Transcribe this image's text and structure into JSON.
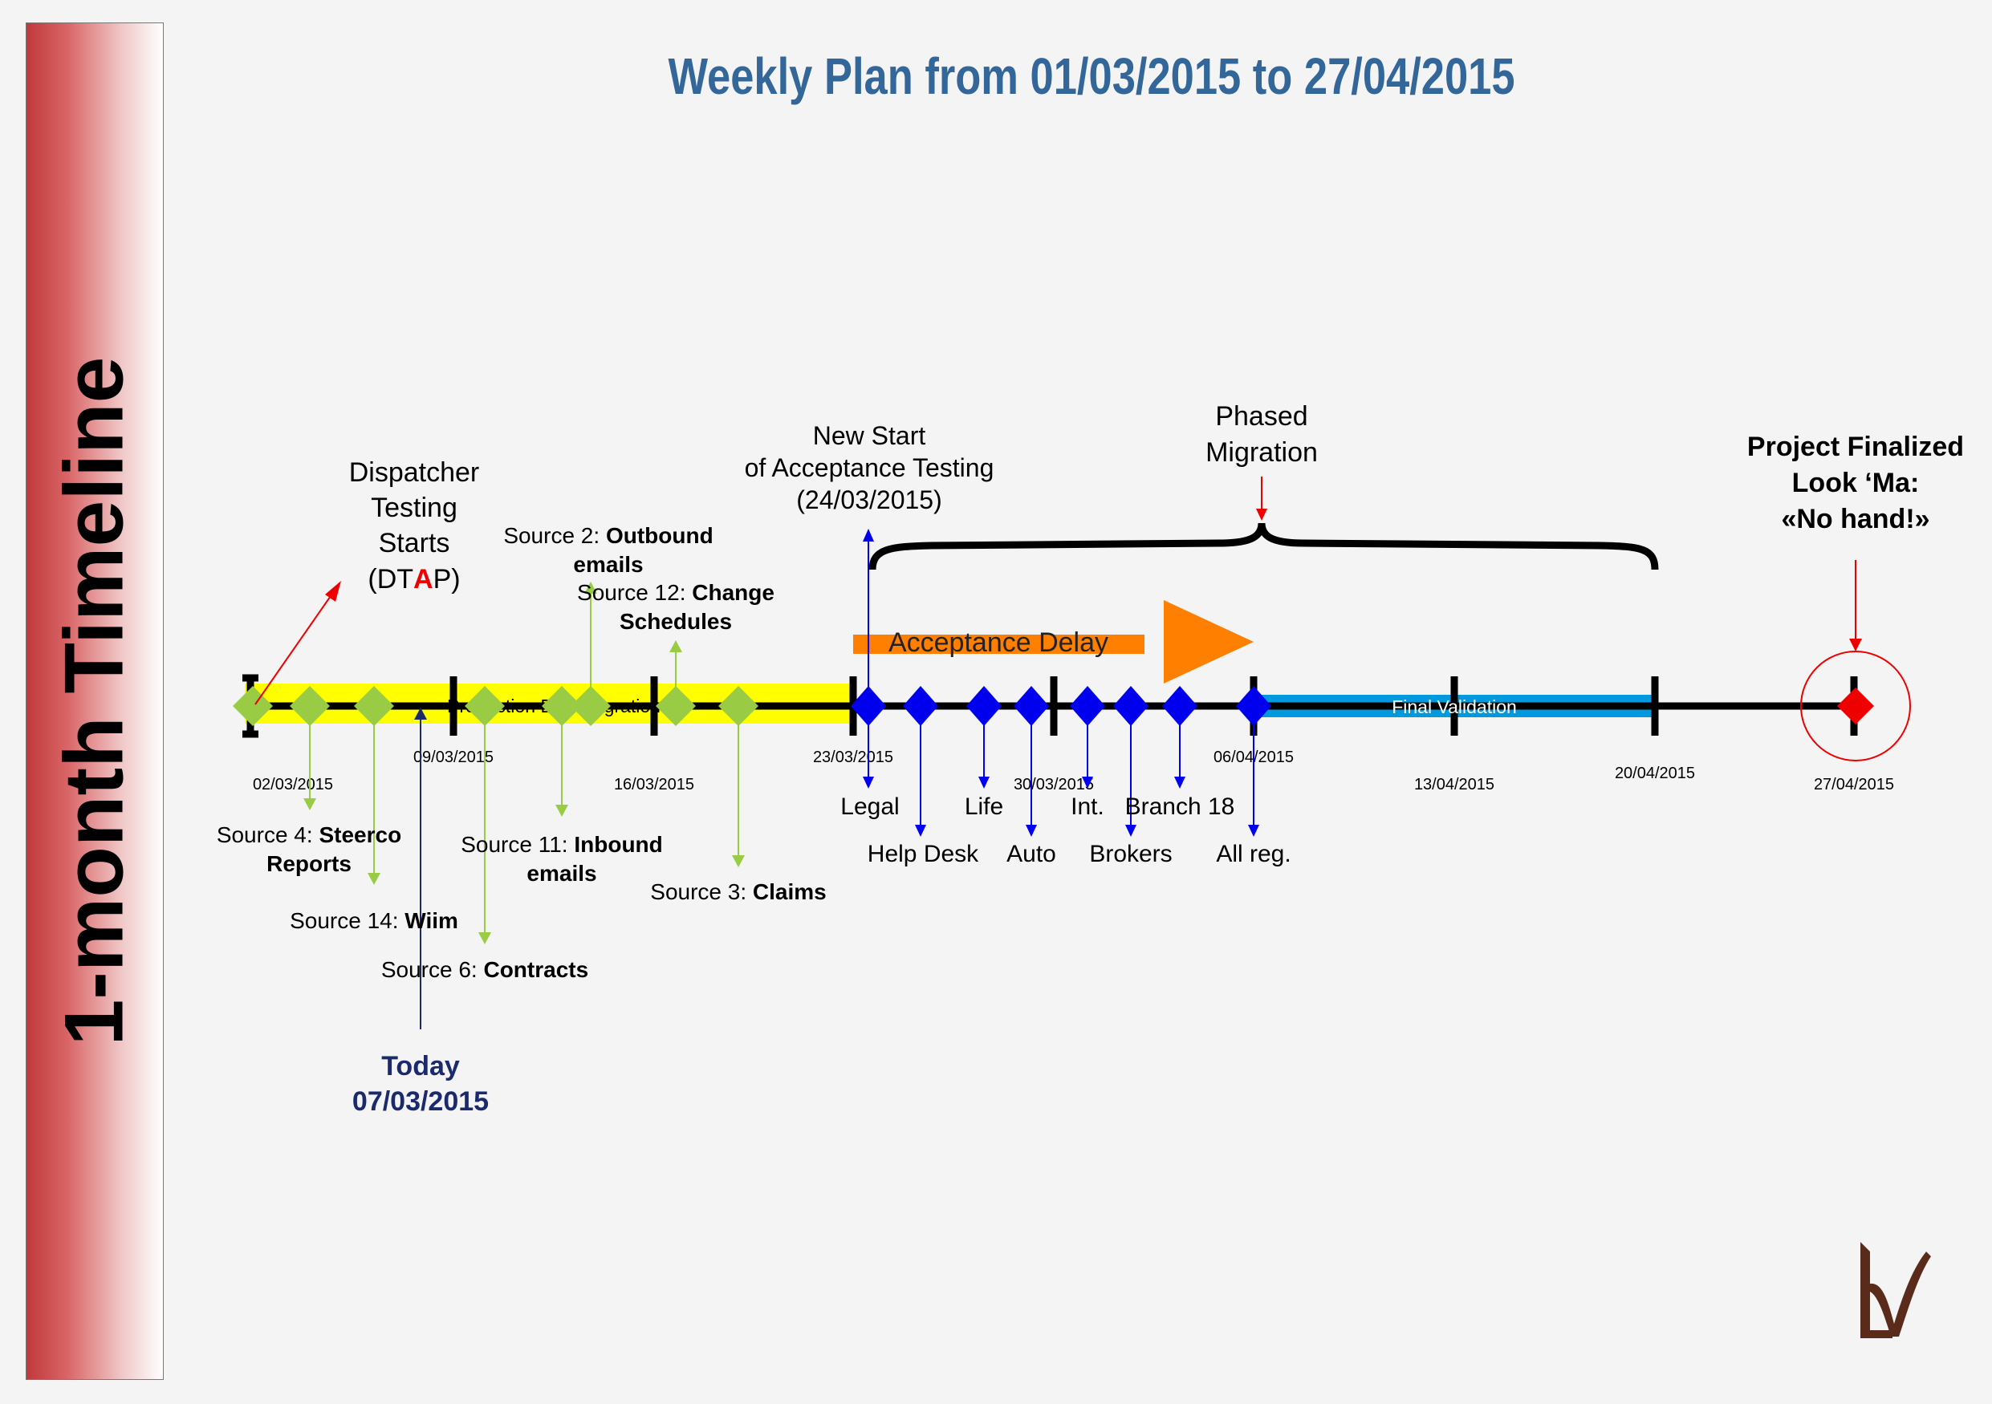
{
  "sidebar": {
    "title": "1-month Timeline"
  },
  "title": "Weekly Plan from 01/03/2015 to 27/04/2015",
  "bars": {
    "production": "Production Data Migration",
    "acceptance_delay": "Acceptance Delay",
    "final_validation": "Final Validation"
  },
  "dates": {
    "d1": "02/03/2015",
    "d2": "09/03/2015",
    "d3": "16/03/2015",
    "d4": "23/03/2015",
    "d5": "30/03/2015",
    "d6": "06/04/2015",
    "d7": "13/04/2015",
    "d8": "20/04/2015",
    "d9": "27/04/2015"
  },
  "callouts": {
    "dispatcher": [
      "Dispatcher",
      "Testing",
      "Starts"
    ],
    "dtap": {
      "pre": "(DT",
      "red": "A",
      "post": "P)"
    },
    "new_start": [
      "New Start",
      "of Acceptance Testing",
      "(24/03/2015)"
    ],
    "phased": [
      "Phased",
      "Migration"
    ],
    "finalized": [
      "Project Finalized",
      "Look ‘Ma:",
      "«No hand!»"
    ],
    "today": [
      "Today",
      "07/03/2015"
    ]
  },
  "sources": {
    "s2": {
      "prefix": "Source 2: ",
      "name1": "Outbound",
      "name2": "emails"
    },
    "s12": {
      "prefix": "Source 12: ",
      "name1": "Change",
      "name2": "Schedules"
    },
    "s4": {
      "prefix": "Source 4: ",
      "name1": "Steerco",
      "name2": "Reports"
    },
    "s14": {
      "prefix": "Source 14: ",
      "name1": "Wiim"
    },
    "s6": {
      "prefix": "Source 6: ",
      "name1": "Contracts"
    },
    "s11": {
      "prefix": "Source 11: ",
      "name1": "Inbound",
      "name2": "emails"
    },
    "s3": {
      "prefix": "Source 3: ",
      "name1": "Claims"
    }
  },
  "branches": {
    "legal": "Legal",
    "helpdesk": "Help Desk",
    "life": "Life",
    "auto": "Auto",
    "int": "Int.",
    "brokers": "Brokers",
    "branch18": "Branch 18",
    "allreg": "All reg."
  },
  "colors": {
    "title": "#336699",
    "production_bar": "#ffff00",
    "acceptance_bar": "#ff8000",
    "final_bar": "#0099dd",
    "source_marker": "#99cc44",
    "branch_marker": "#0000ee",
    "today": "#1a2a6c",
    "finalized": "#ee0000"
  },
  "logo": {
    "text": "LV"
  }
}
